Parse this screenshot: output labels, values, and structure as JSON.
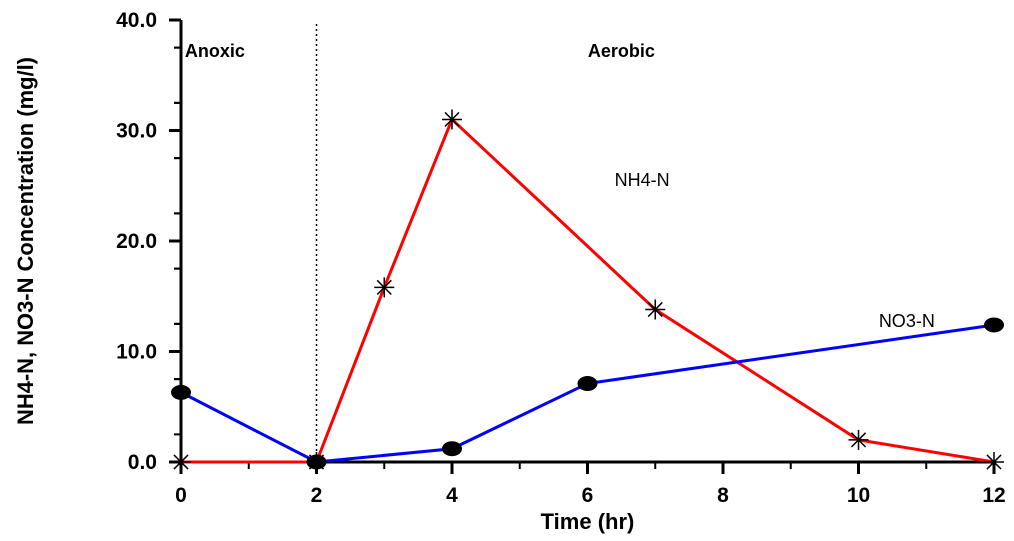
{
  "chart_data": {
    "type": "line",
    "title": "",
    "xlabel": "Time (hr)",
    "ylabel": "NH4-N, NO3-N Concentration (mg/l)",
    "xlim": [
      0,
      12
    ],
    "ylim": [
      0,
      40
    ],
    "x_ticks": [
      "0",
      "2",
      "4",
      "6",
      "8",
      "10",
      "12"
    ],
    "y_ticks": [
      "0.0",
      "10.0",
      "20.0",
      "30.0",
      "40.0"
    ],
    "grid": false,
    "divider": {
      "x": 2,
      "style": "dotted"
    },
    "regions": [
      {
        "label": "Anoxic",
        "x": 0.5
      },
      {
        "label": "Aerobic",
        "x": 6.5
      }
    ],
    "series": [
      {
        "name": "NH4-N",
        "color": "#ff0000",
        "marker": "asterisk",
        "x": [
          0,
          2,
          3,
          4,
          7,
          10,
          12
        ],
        "y": [
          0.0,
          0.0,
          15.8,
          31.0,
          13.8,
          2.0,
          0.0
        ],
        "label_at": [
          6.4,
          25.0
        ]
      },
      {
        "name": "NO3-N",
        "color": "#0000ff",
        "marker": "filled-circle",
        "x": [
          0,
          2,
          4,
          6,
          12
        ],
        "y": [
          6.3,
          0.0,
          1.2,
          7.1,
          12.4
        ],
        "label_at": [
          10.3,
          12.2
        ]
      }
    ]
  }
}
